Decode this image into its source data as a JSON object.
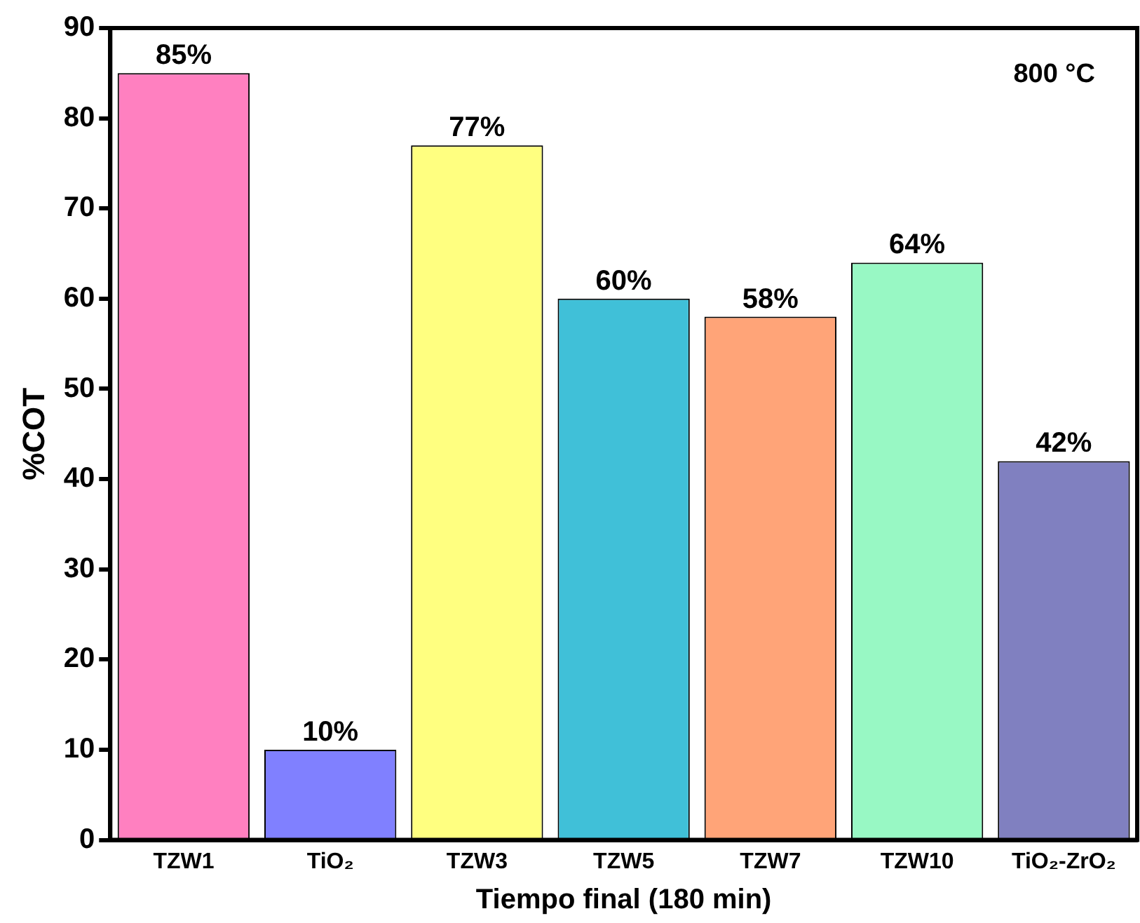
{
  "chart_data": {
    "type": "bar",
    "xlabel": "Tiempo final (180 min)",
    "ylabel": "%COT",
    "categories": [
      "TZW1",
      "TiO₂",
      "TZW3",
      "TZW5",
      "TZW7",
      "TZW10",
      "TiO₂-ZrO₂"
    ],
    "values": [
      85,
      10,
      77,
      60,
      58,
      64,
      42
    ],
    "colors": [
      "#ff80c0",
      "#8080ff",
      "#ffff80",
      "#40c0d8",
      "#ffa478",
      "#98f8c4",
      "#8080c0"
    ],
    "value_labels": [
      "85%",
      "10%",
      "77%",
      "60%",
      "58%",
      "64%",
      "42%"
    ],
    "ylim": [
      0,
      90
    ],
    "yticks": [
      0,
      10,
      20,
      30,
      40,
      50,
      60,
      70,
      80,
      90
    ],
    "grid": false,
    "legend": false,
    "annotations": [
      "800 °C"
    ]
  }
}
